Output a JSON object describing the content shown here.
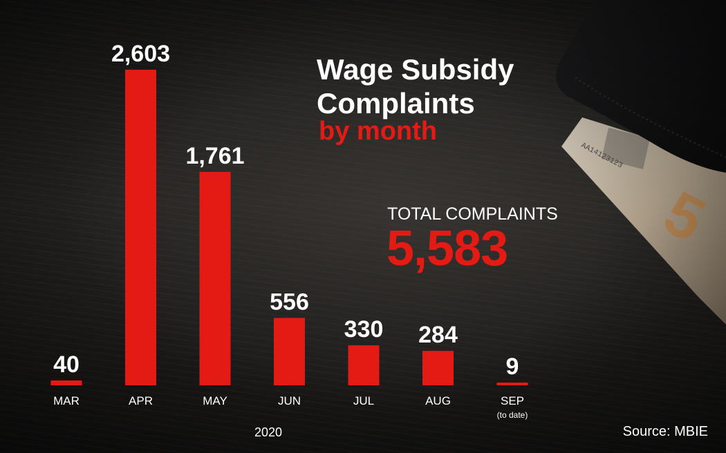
{
  "title": "Wage Subsidy Complaints",
  "subtitle": "by month",
  "total": {
    "label": "TOTAL COMPLAINTS",
    "value": "5,583"
  },
  "source": "Source: MBIE",
  "colors": {
    "bar": "#e31b14",
    "text": "#ffffff",
    "background": "#1e1c1b"
  },
  "chart_data": {
    "type": "bar",
    "title": "Wage Subsidy Complaints",
    "subtitle": "by month",
    "categories": [
      "MAR",
      "APR",
      "MAY",
      "JUN",
      "JUL",
      "AUG",
      "SEP"
    ],
    "category_notes": [
      "",
      "",
      "",
      "",
      "",
      "",
      "(to date)"
    ],
    "values": [
      40,
      2603,
      1761,
      556,
      330,
      284,
      9
    ],
    "value_labels": [
      "40",
      "2,603",
      "1,761",
      "556",
      "330",
      "284",
      "9"
    ],
    "xlabel": "2020",
    "ylabel": "",
    "ylim": [
      0,
      2603
    ],
    "grid": false,
    "legend": "none"
  }
}
